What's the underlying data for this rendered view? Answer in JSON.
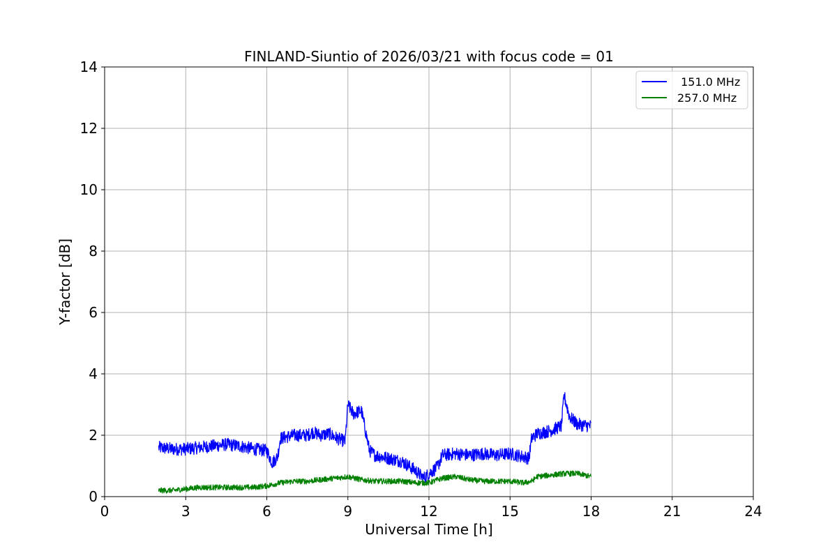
{
  "chart_data": {
    "type": "line",
    "title": "FINLAND-Siuntio of 2026/03/21 with focus code = 01",
    "xlabel": "Universal Time [h]",
    "ylabel": "Y-factor [dB]",
    "xlim": [
      0,
      24
    ],
    "ylim": [
      0,
      14
    ],
    "xticks": [
      0,
      3,
      6,
      9,
      12,
      15,
      18,
      21,
      24
    ],
    "yticks": [
      0,
      2,
      4,
      6,
      8,
      10,
      12,
      14
    ],
    "xtick_labels": [
      "0",
      "3",
      "6",
      "9",
      "12",
      "15",
      "18",
      "21",
      "24"
    ],
    "ytick_labels": [
      "0",
      "2",
      "4",
      "6",
      "8",
      "10",
      "12",
      "14"
    ],
    "grid": true,
    "legend_position": "top-right",
    "series": [
      {
        "name": " 151.0 MHz",
        "color": "#0000ff",
        "x": [
          2.0,
          2.5,
          3.0,
          3.5,
          4.0,
          4.5,
          5.0,
          5.5,
          6.0,
          6.2,
          6.4,
          6.5,
          7.0,
          7.5,
          7.7,
          8.0,
          8.3,
          8.6,
          8.9,
          9.0,
          9.2,
          9.5,
          9.8,
          10.0,
          10.5,
          11.0,
          11.5,
          11.8,
          12.0,
          12.3,
          12.5,
          13.0,
          13.5,
          14.0,
          14.5,
          15.0,
          15.5,
          15.7,
          15.8,
          16.0,
          16.5,
          16.9,
          17.0,
          17.2,
          17.5,
          18.0
        ],
        "y": [
          1.6,
          1.55,
          1.55,
          1.6,
          1.65,
          1.7,
          1.65,
          1.55,
          1.5,
          1.1,
          1.3,
          1.9,
          2.0,
          2.0,
          2.1,
          2.0,
          2.05,
          1.9,
          1.8,
          3.0,
          2.7,
          2.8,
          1.5,
          1.35,
          1.25,
          1.15,
          0.85,
          0.6,
          0.75,
          0.95,
          1.35,
          1.4,
          1.35,
          1.4,
          1.35,
          1.4,
          1.3,
          1.25,
          1.9,
          2.05,
          2.15,
          2.3,
          3.3,
          2.6,
          2.35,
          2.3
        ]
      },
      {
        "name": "257.0 MHz",
        "color": "#008000",
        "x": [
          2.0,
          2.5,
          3.0,
          3.5,
          4.0,
          4.5,
          5.0,
          5.5,
          6.0,
          6.5,
          7.0,
          7.5,
          8.0,
          8.5,
          9.0,
          9.5,
          10.0,
          10.5,
          11.0,
          11.5,
          12.0,
          12.5,
          13.0,
          13.5,
          14.0,
          14.5,
          15.0,
          15.5,
          15.8,
          16.0,
          16.5,
          17.0,
          17.5,
          18.0
        ],
        "y": [
          0.2,
          0.2,
          0.25,
          0.3,
          0.3,
          0.3,
          0.3,
          0.3,
          0.35,
          0.45,
          0.5,
          0.5,
          0.55,
          0.6,
          0.65,
          0.55,
          0.5,
          0.5,
          0.5,
          0.45,
          0.45,
          0.6,
          0.65,
          0.55,
          0.5,
          0.5,
          0.5,
          0.45,
          0.5,
          0.65,
          0.7,
          0.75,
          0.75,
          0.65
        ]
      }
    ]
  }
}
